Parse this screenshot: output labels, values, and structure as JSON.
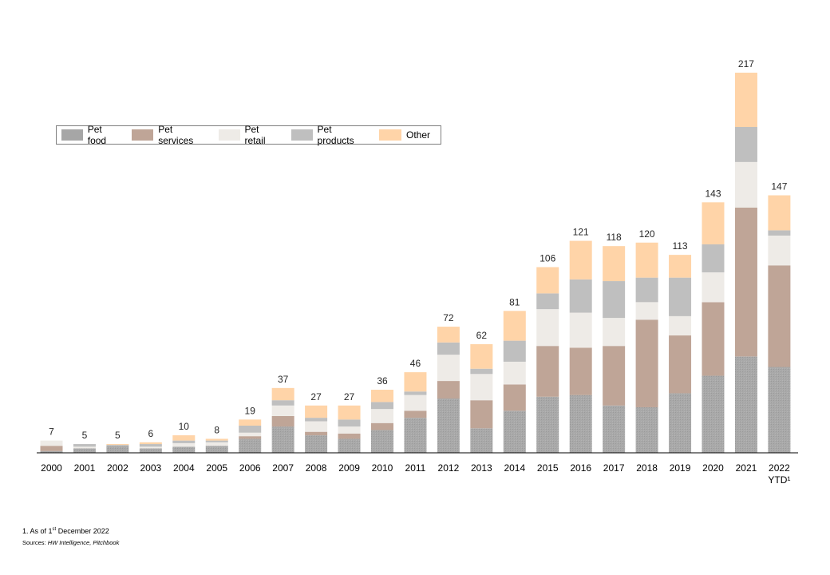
{
  "chart_data": {
    "type": "bar",
    "stacked": true,
    "categories": [
      "2000",
      "2001",
      "2002",
      "2003",
      "2004",
      "2005",
      "2006",
      "2007",
      "2008",
      "2009",
      "2010",
      "2011",
      "2012",
      "2013",
      "2014",
      "2015",
      "2016",
      "2017",
      "2018",
      "2019",
      "2020",
      "2021",
      "2022 YTD¹"
    ],
    "category_lines": [
      [
        "2000"
      ],
      [
        "2001"
      ],
      [
        "2002"
      ],
      [
        "2003"
      ],
      [
        "2004"
      ],
      [
        "2005"
      ],
      [
        "2006"
      ],
      [
        "2007"
      ],
      [
        "2008"
      ],
      [
        "2009"
      ],
      [
        "2010"
      ],
      [
        "2011"
      ],
      [
        "2012"
      ],
      [
        "2013"
      ],
      [
        "2014"
      ],
      [
        "2015"
      ],
      [
        "2016"
      ],
      [
        "2017"
      ],
      [
        "2018"
      ],
      [
        "2019"
      ],
      [
        "2020"
      ],
      [
        "2021"
      ],
      [
        "2022",
        "YTD¹"
      ]
    ],
    "totals": [
      7,
      5,
      5,
      6,
      10,
      8,
      19,
      37,
      27,
      27,
      36,
      46,
      72,
      62,
      81,
      106,
      121,
      118,
      120,
      113,
      143,
      217,
      147
    ],
    "series": [
      {
        "name": "Pet food",
        "color": "#a6a6a6",
        "pattern": true,
        "values": [
          1,
          2.5,
          4,
          2.5,
          3.5,
          4,
          8,
          15,
          10,
          8,
          13,
          20,
          31,
          14,
          24,
          32,
          33,
          27,
          26,
          34,
          44,
          55,
          49
        ]
      },
      {
        "name": "Pet services",
        "color": "#bfa597",
        "values": [
          3,
          0,
          0,
          0,
          0,
          0,
          1.5,
          6,
          2,
          3,
          4,
          4,
          10,
          16,
          15,
          29,
          27,
          34,
          50,
          33,
          42,
          85,
          58
        ]
      },
      {
        "name": "Pet retail",
        "color": "#eeebe7",
        "values": [
          3,
          1,
          0,
          1,
          2,
          2,
          2,
          6,
          6,
          4,
          8,
          9,
          15,
          15,
          13,
          21,
          20,
          16,
          10,
          11,
          17,
          26,
          17
        ]
      },
      {
        "name": "Pet products",
        "color": "#bfbfbf",
        "values": [
          0,
          1.5,
          0.5,
          1.5,
          1.5,
          1,
          4,
          3,
          2,
          4,
          4,
          2,
          7,
          3,
          12,
          9,
          19,
          21,
          14,
          22,
          16,
          20,
          3
        ]
      },
      {
        "name": "Other",
        "color": "#ffd4a8",
        "values": [
          0,
          0,
          0.5,
          1,
          3,
          1,
          3.5,
          7,
          7,
          8,
          7,
          11,
          9,
          14,
          17,
          15,
          22,
          20,
          20,
          13,
          24,
          31,
          20
        ]
      }
    ],
    "ylim": [
      0,
      240
    ],
    "legend_position": "top-left"
  },
  "footnote": {
    "prefix": "1. As of 1",
    "sup": "st",
    "suffix": " December 2022"
  },
  "sources": {
    "label": "Sources:",
    "text": "HW Intelligence, Pitchbook"
  }
}
